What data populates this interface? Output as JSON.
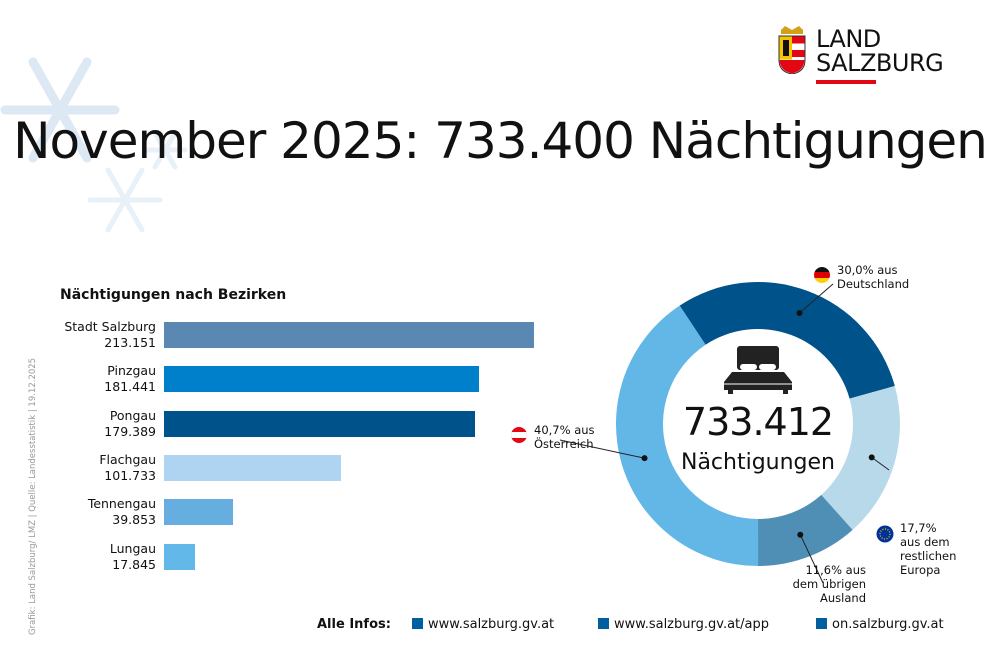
{
  "title": "November 2025: 733.400 Nächtigungen",
  "logo": {
    "line1": "LAND",
    "line2": "SALZBURG"
  },
  "side_note": "Grafik: Land Salzburg/ LMZ | Quelle: Landesstatistik | 19.12.2025",
  "chart_data": [
    {
      "type": "bar",
      "orientation": "horizontal",
      "title": "Nächtigungen nach Bezirken",
      "categories": [
        "Stadt Salzburg",
        "Pinzgau",
        "Pongau",
        "Flachgau",
        "Tennengau",
        "Lungau"
      ],
      "values": [
        213151,
        181441,
        179389,
        101733,
        39853,
        17845
      ],
      "value_labels": [
        "213.151",
        "181.441",
        "179.389",
        "101.733",
        "39.853",
        "17.845"
      ],
      "colors": [
        "#5b88b2",
        "#007fcb",
        "#00538a",
        "#aed4f2",
        "#66ade0",
        "#62b8e8"
      ]
    },
    {
      "type": "pie",
      "variant": "donut",
      "center_value": "733.412",
      "center_label": "Nächtigungen",
      "slices": [
        {
          "label_line1": "30,0% aus",
          "label_line2": "Deutschland",
          "label_line3": "",
          "value": 30.0,
          "color": "#00538a",
          "flag": "germany"
        },
        {
          "label_line1": "17,7%",
          "label_line2": "aus dem",
          "label_line3": "restlichen",
          "label_line4": "Europa",
          "value": 17.7,
          "color": "#b8d9ea",
          "flag": "eu"
        },
        {
          "label_line1": "11,6% aus",
          "label_line2": "dem übrigen",
          "label_line3": "Ausland",
          "value": 11.6,
          "color": "#4f8fb5"
        },
        {
          "label_line1": "40,7% aus",
          "label_line2": "Österreich",
          "label_line3": "",
          "value": 40.7,
          "color": "#62b7e7",
          "flag": "austria"
        }
      ]
    }
  ],
  "footer": {
    "label": "Alle Infos:",
    "links": [
      "www.salzburg.gv.at",
      "www.salzburg.gv.at/app",
      "on.salzburg.gv.at"
    ]
  }
}
